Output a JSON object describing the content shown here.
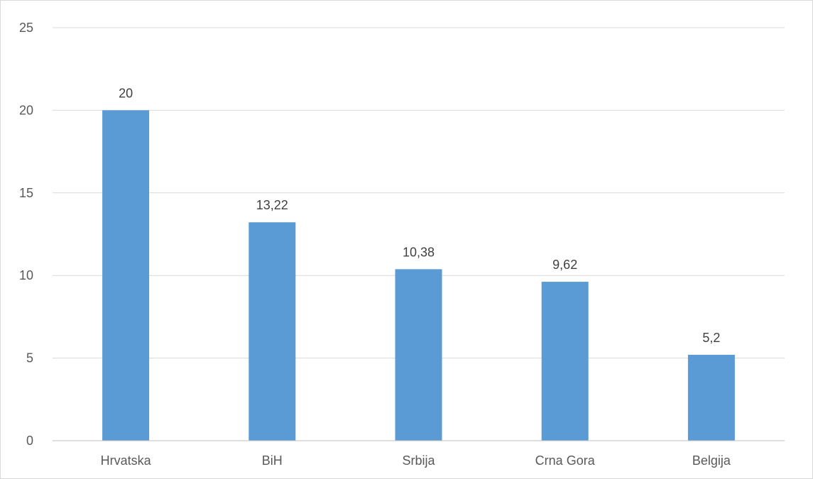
{
  "chart_data": {
    "type": "bar",
    "categories": [
      "Hrvatska",
      "BiH",
      "Srbija",
      "Crna Gora",
      "Belgija"
    ],
    "values": [
      20,
      13.22,
      10.38,
      9.62,
      5.2
    ],
    "data_labels": [
      "20",
      "13,22",
      "10,38",
      "9,62",
      "5,2"
    ],
    "y_ticks": [
      0,
      5,
      10,
      15,
      20,
      25
    ],
    "y_tick_labels": [
      "0",
      "5",
      "10",
      "15",
      "20",
      "25"
    ],
    "ylim": [
      0,
      25
    ],
    "grid": true,
    "legend": "none",
    "title": "",
    "xlabel": "",
    "ylabel": "",
    "colors": {
      "bar": "#5b9bd5",
      "grid": "#d9d9d9",
      "axis": "#bfbfbf",
      "border": "#d9d9d9",
      "tick_text": "#595959",
      "label_text": "#404040"
    }
  }
}
